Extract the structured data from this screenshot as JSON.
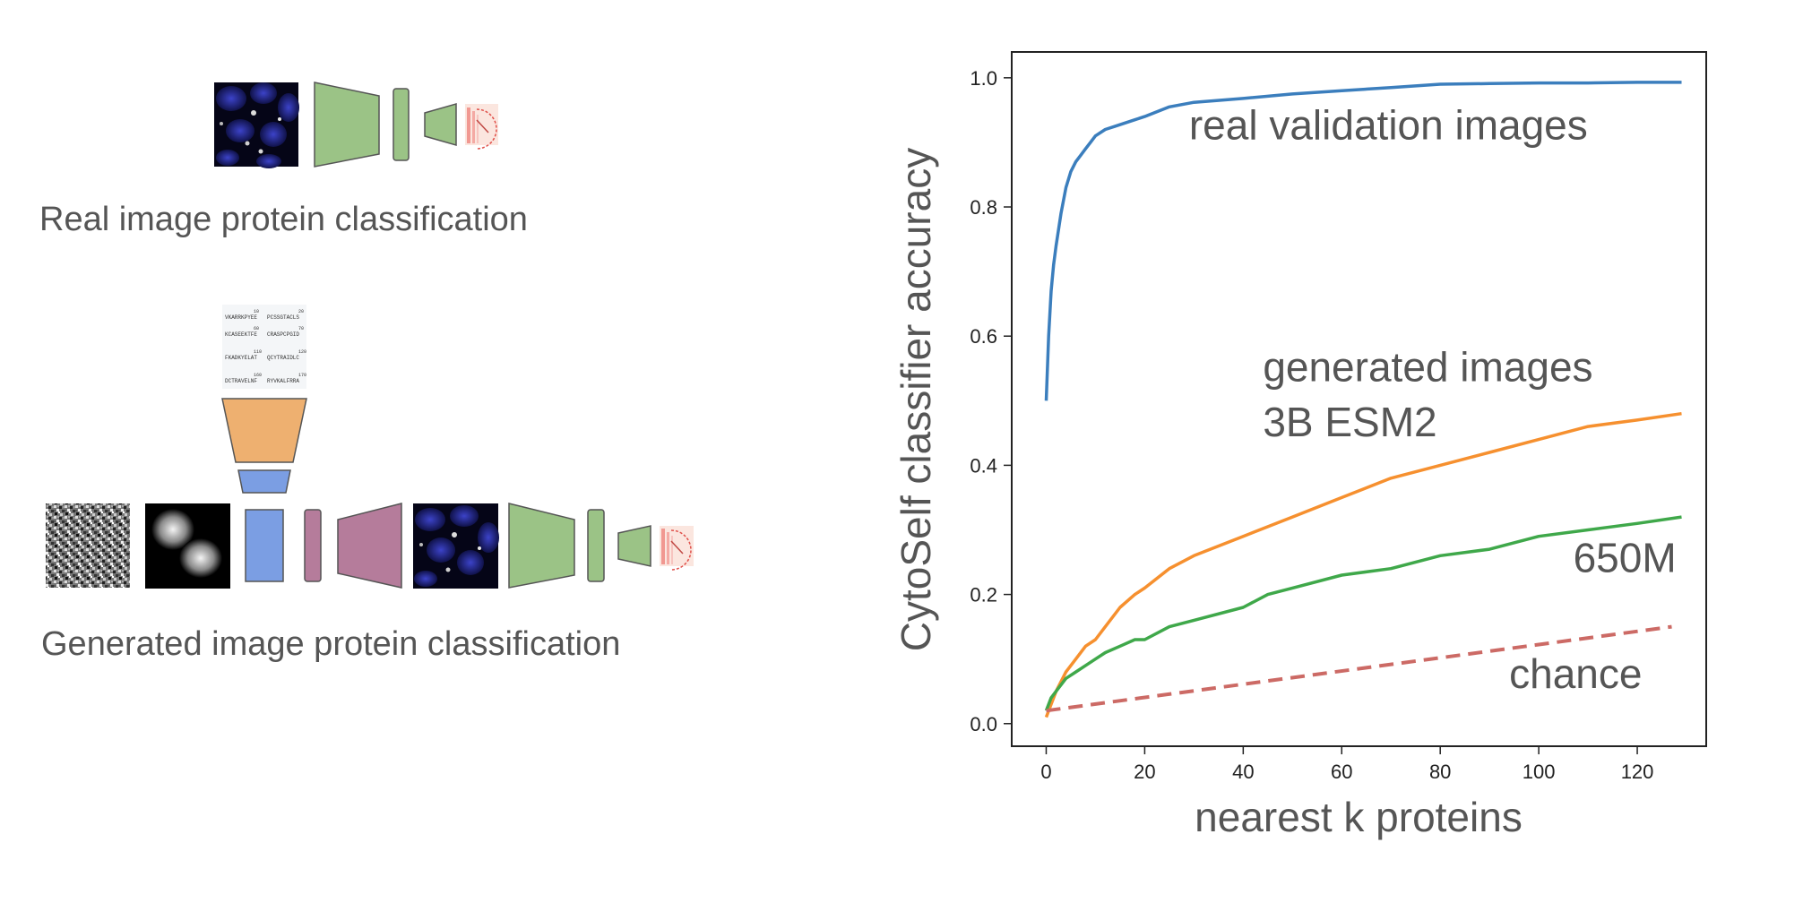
{
  "diagram": {
    "real_caption": "Real image protein classification",
    "generated_caption": "Generated image protein classification",
    "sequence_lines": [
      {
        "pos_a": "10",
        "pos_b": "20",
        "seg_a": "VKARRKPYEE",
        "seg_b": "PCSSGTACLS"
      },
      {
        "pos_a": "60",
        "pos_b": "70",
        "seg_a": "KCASEEKTFE",
        "seg_b": "CRASPCPGID"
      },
      {
        "pos_a": "110",
        "pos_b": "120",
        "seg_a": "FKADKYELAT",
        "seg_b": "QCYTRAIDLC"
      },
      {
        "pos_a": "160",
        "pos_b": "170",
        "seg_a": "DCTRAVELNF",
        "seg_b": "RYVKALFRRA"
      }
    ],
    "colors": {
      "classifier": "#9bc386",
      "language_model": "#eeb070",
      "embedding": "#7b9ee3",
      "decoder": "#b57c9b",
      "output": "#f4a7a0"
    }
  },
  "chart_data": {
    "type": "line",
    "title": "",
    "xlabel": "nearest k proteins",
    "ylabel": "CytoSelf classifier accuracy",
    "xlim": [
      -7,
      134
    ],
    "ylim": [
      -0.035,
      1.04
    ],
    "xticks": [
      0,
      20,
      40,
      60,
      80,
      100,
      120
    ],
    "yticks": [
      0.0,
      0.2,
      0.4,
      0.6,
      0.8,
      1.0
    ],
    "xtick_labels": [
      "0",
      "20",
      "40",
      "60",
      "80",
      "100",
      "120"
    ],
    "ytick_labels": [
      "0.0",
      "0.2",
      "0.4",
      "0.6",
      "0.8",
      "1.0"
    ],
    "series": [
      {
        "name": "real validation images",
        "color": "#3b7ebd",
        "dashed": false,
        "x": [
          0,
          0.5,
          1,
          1.5,
          2,
          3,
          4,
          5,
          6,
          7,
          8,
          9,
          10,
          12,
          14,
          16,
          18,
          20,
          25,
          30,
          40,
          50,
          60,
          70,
          80,
          90,
          100,
          110,
          120,
          129
        ],
        "y": [
          0.5,
          0.6,
          0.67,
          0.71,
          0.74,
          0.79,
          0.83,
          0.855,
          0.87,
          0.88,
          0.89,
          0.9,
          0.91,
          0.92,
          0.925,
          0.93,
          0.935,
          0.94,
          0.955,
          0.962,
          0.968,
          0.975,
          0.98,
          0.985,
          0.99,
          0.991,
          0.992,
          0.992,
          0.993,
          0.993
        ]
      },
      {
        "name": "generated images 3B ESM2",
        "color": "#f6902f",
        "dashed": false,
        "x": [
          0,
          1,
          2,
          4,
          6,
          8,
          10,
          12,
          15,
          18,
          20,
          25,
          30,
          40,
          50,
          60,
          70,
          80,
          90,
          100,
          110,
          120,
          129
        ],
        "y": [
          0.01,
          0.03,
          0.05,
          0.08,
          0.1,
          0.12,
          0.13,
          0.15,
          0.18,
          0.2,
          0.21,
          0.24,
          0.26,
          0.29,
          0.32,
          0.35,
          0.38,
          0.4,
          0.42,
          0.44,
          0.46,
          0.47,
          0.48
        ]
      },
      {
        "name": "650M",
        "color": "#3fa84a",
        "dashed": false,
        "x": [
          0,
          1,
          2,
          4,
          6,
          8,
          10,
          12,
          15,
          18,
          20,
          25,
          30,
          40,
          45,
          50,
          60,
          70,
          80,
          90,
          100,
          110,
          120,
          129
        ],
        "y": [
          0.02,
          0.04,
          0.05,
          0.07,
          0.08,
          0.09,
          0.1,
          0.11,
          0.12,
          0.13,
          0.13,
          0.15,
          0.16,
          0.18,
          0.2,
          0.21,
          0.23,
          0.24,
          0.26,
          0.27,
          0.29,
          0.3,
          0.31,
          0.32
        ]
      },
      {
        "name": "chance",
        "color": "#cc6a65",
        "dashed": true,
        "x": [
          0,
          127
        ],
        "y": [
          0.02,
          0.15
        ]
      }
    ],
    "annotations": [
      {
        "text": "real validation images",
        "x": 29,
        "y": 0.905
      },
      {
        "text": "generated images",
        "x": 44,
        "y": 0.53
      },
      {
        "text": "3B ESM2",
        "x": 44,
        "y": 0.445
      },
      {
        "text": "650M",
        "x": 107,
        "y": 0.235
      },
      {
        "text": "chance",
        "x": 94,
        "y": 0.055
      }
    ]
  }
}
